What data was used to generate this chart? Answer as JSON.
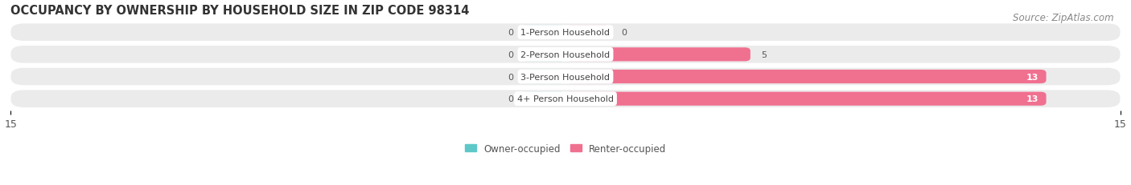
{
  "title": "OCCUPANCY BY OWNERSHIP BY HOUSEHOLD SIZE IN ZIP CODE 98314",
  "source": "Source: ZipAtlas.com",
  "categories": [
    "1-Person Household",
    "2-Person Household",
    "3-Person Household",
    "4+ Person Household"
  ],
  "owner_values": [
    0,
    0,
    0,
    0
  ],
  "renter_values": [
    0,
    5,
    13,
    13
  ],
  "owner_color": "#5ec8c8",
  "renter_color": "#f07090",
  "bar_bg_color": "#ebebeb",
  "xlim_left": -15,
  "xlim_right": 15,
  "title_fontsize": 10.5,
  "source_fontsize": 8.5,
  "tick_fontsize": 9,
  "label_fontsize": 8,
  "legend_fontsize": 8.5,
  "owner_label": "Owner-occupied",
  "renter_label": "Renter-occupied",
  "figsize": [
    14.06,
    2.32
  ],
  "dpi": 100
}
